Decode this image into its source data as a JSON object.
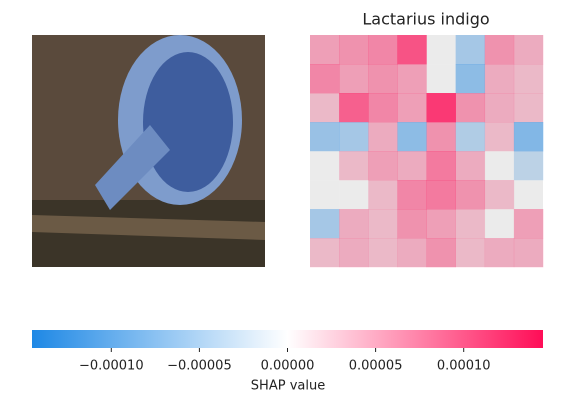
{
  "chart_data": {
    "type": "heatmap",
    "title": "Lactarius indigo",
    "z": [
      [
        3e-05,
        4e-05,
        5e-05,
        9e-05,
        0,
        -3e-05,
        4e-05,
        2e-05
      ],
      [
        5e-05,
        3e-05,
        4e-05,
        3e-05,
        0,
        -5e-05,
        2e-05,
        1e-05
      ],
      [
        1e-05,
        8e-05,
        5e-05,
        3e-05,
        0.00011,
        4e-05,
        2e-05,
        1e-05
      ],
      [
        -4e-05,
        -3e-05,
        2e-05,
        -5e-05,
        4e-05,
        -2e-05,
        1e-05,
        -6e-05
      ],
      [
        0,
        1e-05,
        3e-05,
        2e-05,
        6e-05,
        2e-05,
        0,
        -1e-05
      ],
      [
        0,
        0,
        1e-05,
        5e-05,
        6e-05,
        4e-05,
        1e-05,
        0
      ],
      [
        -3e-05,
        2e-05,
        1e-05,
        4e-05,
        3e-05,
        1e-05,
        0,
        3e-05
      ],
      [
        1e-05,
        2e-05,
        1e-05,
        2e-05,
        4e-05,
        1e-05,
        2e-05,
        2e-05
      ]
    ],
    "colorbar": {
      "label": "SHAP value",
      "lim": [
        -0.000145,
        0.000145
      ],
      "ticks": [
        {
          "value": -0.0001,
          "label": "−0.00010"
        },
        {
          "value": -5e-05,
          "label": "−0.00005"
        },
        {
          "value": 0,
          "label": "0.00000"
        },
        {
          "value": 5e-05,
          "label": "0.00005"
        },
        {
          "value": 0.0001,
          "label": "0.00010"
        }
      ],
      "negative_color": "#1e88e5",
      "positive_color": "#ff0d57"
    }
  }
}
